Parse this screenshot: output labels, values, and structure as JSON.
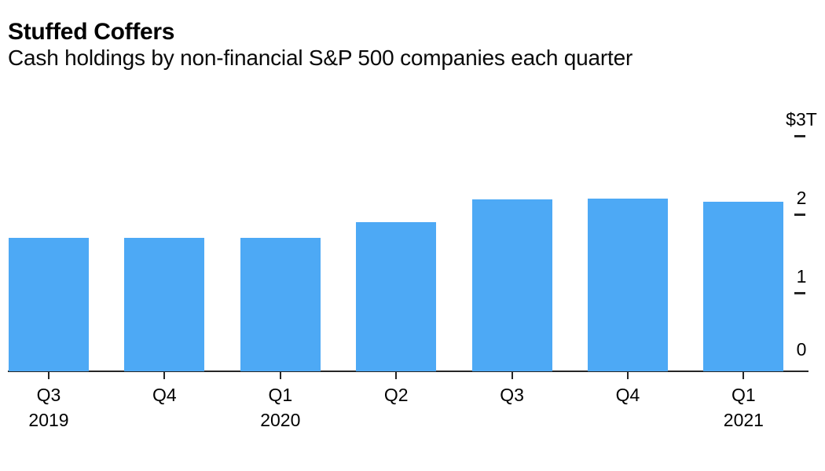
{
  "chart_data": {
    "type": "bar",
    "title": "Stuffed Coffers",
    "subtitle": "Cash holdings by non-financial S&P 500 companies each quarter",
    "unit": "USD trillions",
    "categories": [
      {
        "quarter": "Q3",
        "year": "2019"
      },
      {
        "quarter": "Q4",
        "year": ""
      },
      {
        "quarter": "Q1",
        "year": "2020"
      },
      {
        "quarter": "Q2",
        "year": ""
      },
      {
        "quarter": "Q3",
        "year": ""
      },
      {
        "quarter": "Q4",
        "year": ""
      },
      {
        "quarter": "Q1",
        "year": "2021"
      }
    ],
    "values": [
      1.7,
      1.7,
      1.7,
      1.9,
      2.19,
      2.2,
      2.16
    ],
    "ylim": [
      0,
      3
    ],
    "y_ticks": [
      {
        "label": "$3T",
        "value": 3,
        "dash": true
      },
      {
        "label": "2",
        "value": 2,
        "dash": true
      },
      {
        "label": "1",
        "value": 1,
        "dash": true
      },
      {
        "label": "0",
        "value": 0,
        "dash": false
      }
    ],
    "y_axis_side": "right",
    "grid": false,
    "legend": "none",
    "bar_color": "#4da9f5",
    "axis_color": "#262626",
    "text_color": "#000000"
  }
}
